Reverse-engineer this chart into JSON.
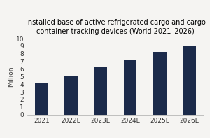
{
  "title": "Installed base of active refrigerated cargo and cargo\ncontainer tracking devices (World 2021–2026)",
  "categories": [
    "2021",
    "2022E",
    "2023E",
    "2024E",
    "2025E",
    "2026E"
  ],
  "values": [
    4.15,
    5.05,
    6.2,
    7.15,
    8.25,
    9.1
  ],
  "bar_color": "#1b2a4a",
  "ylabel": "Million",
  "ylim": [
    0,
    10
  ],
  "yticks": [
    0,
    1,
    2,
    3,
    4,
    5,
    6,
    7,
    8,
    9,
    10
  ],
  "title_fontsize": 7.0,
  "axis_fontsize": 6.5,
  "ylabel_fontsize": 6.5,
  "background_color": "#f5f4f2",
  "bar_width": 0.45,
  "spine_color": "#aaaaaa"
}
